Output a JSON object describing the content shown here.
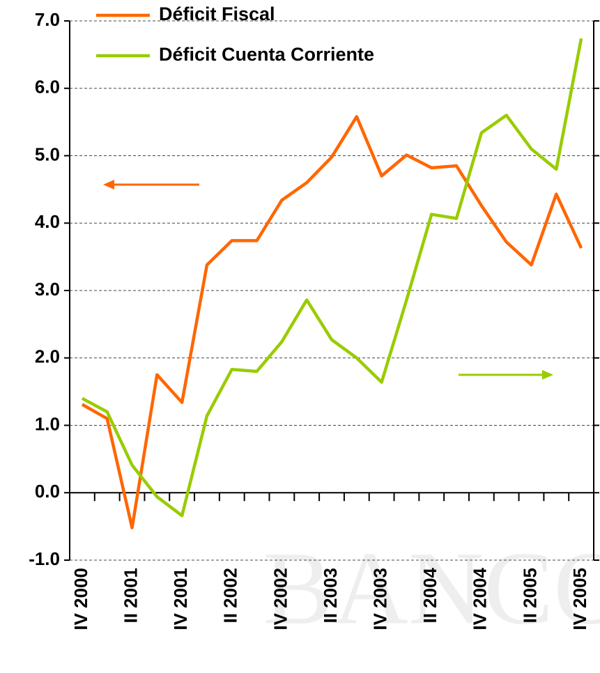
{
  "chart_data": {
    "type": "line",
    "watermark": "BANCO",
    "categories": [
      "IV 2000",
      null,
      "II 2001",
      null,
      "IV 2001",
      null,
      "II 2002",
      null,
      "IV 2002",
      null,
      "II 2003",
      null,
      "IV 2003",
      null,
      "II 2004",
      null,
      "IV 2004",
      null,
      "II 2005",
      null,
      "IV 2005"
    ],
    "series": [
      {
        "name": "Déficit Fiscal",
        "color": "#ff6600",
        "values": [
          1.31,
          1.1,
          -0.52,
          1.75,
          1.34,
          3.38,
          3.74,
          3.74,
          4.34,
          4.6,
          4.98,
          5.58,
          4.7,
          5.01,
          4.82,
          4.85,
          4.26,
          3.72,
          3.38,
          4.43,
          3.63
        ]
      },
      {
        "name": "Déficit Cuenta Corriente",
        "color": "#99cc00",
        "values": [
          1.4,
          1.2,
          0.41,
          -0.06,
          -0.34,
          1.14,
          1.83,
          1.8,
          2.24,
          2.86,
          2.27,
          2.0,
          1.64,
          2.86,
          4.13,
          4.07,
          5.34,
          5.6,
          5.1,
          4.8,
          6.74
        ]
      }
    ],
    "ylim": [
      -1,
      7
    ],
    "yticks": [
      {
        "value": -1,
        "label": "-1.0"
      },
      {
        "value": 0,
        "label": "0.0"
      },
      {
        "value": 1,
        "label": "1.0"
      },
      {
        "value": 2,
        "label": "2.0"
      },
      {
        "value": 3,
        "label": "3.0"
      },
      {
        "value": 4,
        "label": "4.0"
      },
      {
        "value": 5,
        "label": "5.0"
      },
      {
        "value": 6,
        "label": "6.0"
      },
      {
        "value": 7,
        "label": "7.0"
      }
    ],
    "grid": true
  }
}
